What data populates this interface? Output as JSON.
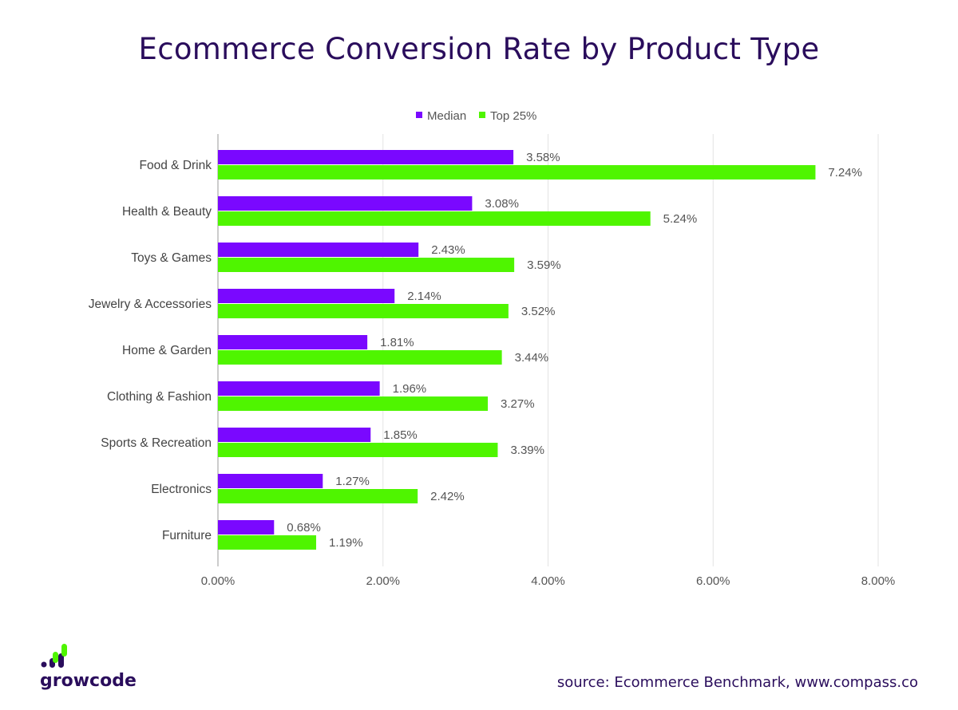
{
  "chart_data": {
    "type": "bar",
    "orientation": "horizontal",
    "title": "Ecommerce Conversion Rate by Product Type",
    "categories": [
      "Food & Drink",
      "Health & Beauty",
      "Toys & Games",
      "Jewelry & Accessories",
      "Home & Garden",
      "Clothing & Fashion",
      "Sports & Recreation",
      "Electronics",
      "Furniture"
    ],
    "series": [
      {
        "name": "Median",
        "color": "#7a08ff",
        "values": [
          3.58,
          3.08,
          2.43,
          2.14,
          1.81,
          1.96,
          1.85,
          1.27,
          0.68
        ],
        "labels": [
          "3.58%",
          "3.08%",
          "2.43%",
          "2.14%",
          "1.81%",
          "1.96%",
          "1.85%",
          "1.27%",
          "0.68%"
        ]
      },
      {
        "name": "Top 25%",
        "color": "#4ff500",
        "values": [
          7.24,
          5.24,
          3.59,
          3.52,
          3.44,
          3.27,
          3.39,
          2.42,
          1.19
        ],
        "labels": [
          "7.24%",
          "5.24%",
          "3.59%",
          "3.52%",
          "3.44%",
          "3.27%",
          "3.39%",
          "2.42%",
          "1.19%"
        ]
      }
    ],
    "xlim": [
      0,
      8
    ],
    "xticks": [
      0,
      2,
      4,
      6,
      8
    ],
    "xtick_labels": [
      "0.00%",
      "2.00%",
      "4.00%",
      "6.00%",
      "8.00%"
    ],
    "grid": true,
    "legend_position": "top"
  },
  "footer": {
    "source": "source: Ecommerce Benchmark, www.compass.co",
    "logo": "growcode"
  }
}
